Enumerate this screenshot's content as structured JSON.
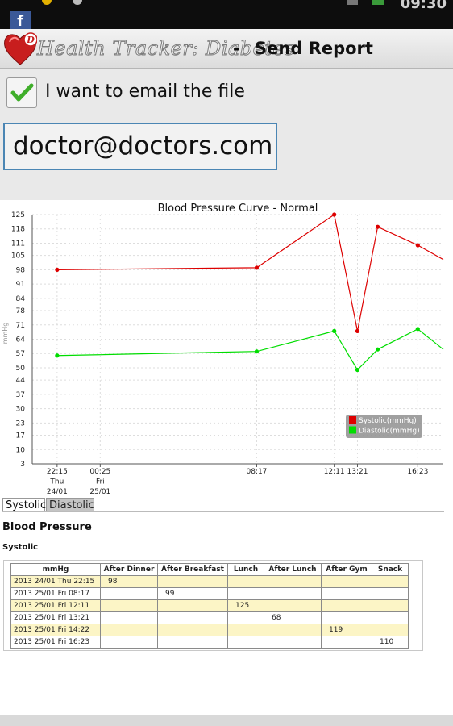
{
  "status_bar": {
    "facebook_icon": "f",
    "time": "09:30"
  },
  "app": {
    "name": "Health Tracker: Diabetes",
    "separator": "-",
    "page_title": "Send Report"
  },
  "email_option": {
    "label": "I want to email the file",
    "checked": true
  },
  "email": {
    "value": "doctor@doctors.com"
  },
  "chart_data": {
    "type": "line",
    "title": "Blood Pressure Curve - Normal",
    "ylabel": "mmHg",
    "ylim": [
      3,
      125
    ],
    "y_ticks": [
      125,
      118,
      111,
      105,
      98,
      91,
      84,
      78,
      71,
      64,
      57,
      50,
      44,
      37,
      30,
      23,
      17,
      10,
      3
    ],
    "x_ticks": [
      {
        "lines": [
          "22:15",
          "Thu",
          "24/01"
        ]
      },
      {
        "lines": [
          "00:25",
          "Fri",
          "25/01"
        ]
      },
      {
        "lines": [
          "08:17"
        ]
      },
      {
        "lines": [
          "12:11"
        ]
      },
      {
        "lines": [
          "13:21"
        ]
      },
      {
        "lines": [
          "16:23"
        ]
      }
    ],
    "x_range": [
      "2013-01-24 21:00",
      "2013-01-25 17:40"
    ],
    "x_tick_times": [
      "2013-01-24 22:15",
      "2013-01-25 00:25",
      "2013-01-25 08:17",
      "2013-01-25 12:11",
      "2013-01-25 13:21",
      "2013-01-25 16:23"
    ],
    "x": [
      "2013-01-24 22:15",
      "2013-01-25 08:17",
      "2013-01-25 12:11",
      "2013-01-25 13:21",
      "2013-01-25 14:22",
      "2013-01-25 16:23",
      "2013-01-25 17:40"
    ],
    "grid": true,
    "legend_position": "bottom-right",
    "series": [
      {
        "name": "Systolic(mmHg)",
        "color": "#dd0000",
        "values": [
          98,
          99,
          125,
          68,
          119,
          110,
          103
        ]
      },
      {
        "name": "Diastolic(mmHg)",
        "color": "#00dd00",
        "values": [
          56,
          58,
          68,
          49,
          59,
          69,
          59
        ]
      }
    ]
  },
  "tabs": [
    "Systolic",
    "Diastolic"
  ],
  "section": {
    "title": "Blood Pressure",
    "subtitle": "Systolic"
  },
  "table": {
    "headers": [
      "mmHg",
      "After Dinner",
      "After Breakfast",
      "Lunch",
      "After Lunch",
      "After Gym",
      "Snack"
    ],
    "rows": [
      [
        "2013 24/01 Thu 22:15",
        "98",
        "",
        "",
        "",
        "",
        ""
      ],
      [
        "2013 25/01 Fri 08:17",
        "",
        "99",
        "",
        "",
        "",
        ""
      ],
      [
        "2013 25/01 Fri 12:11",
        "",
        "",
        "125",
        "",
        "",
        ""
      ],
      [
        "2013 25/01 Fri 13:21",
        "",
        "",
        "",
        "68",
        "",
        ""
      ],
      [
        "2013 25/01 Fri 14:22",
        "",
        "",
        "",
        "",
        "119",
        ""
      ],
      [
        "2013 25/01 Fri 16:23",
        "",
        "",
        "",
        "",
        "",
        "110"
      ]
    ]
  },
  "colors": {
    "systolic": "#dd0000",
    "diastolic": "#00dd00",
    "email_border": "#4b86b4",
    "row_highlight": "#fcf5c6"
  }
}
